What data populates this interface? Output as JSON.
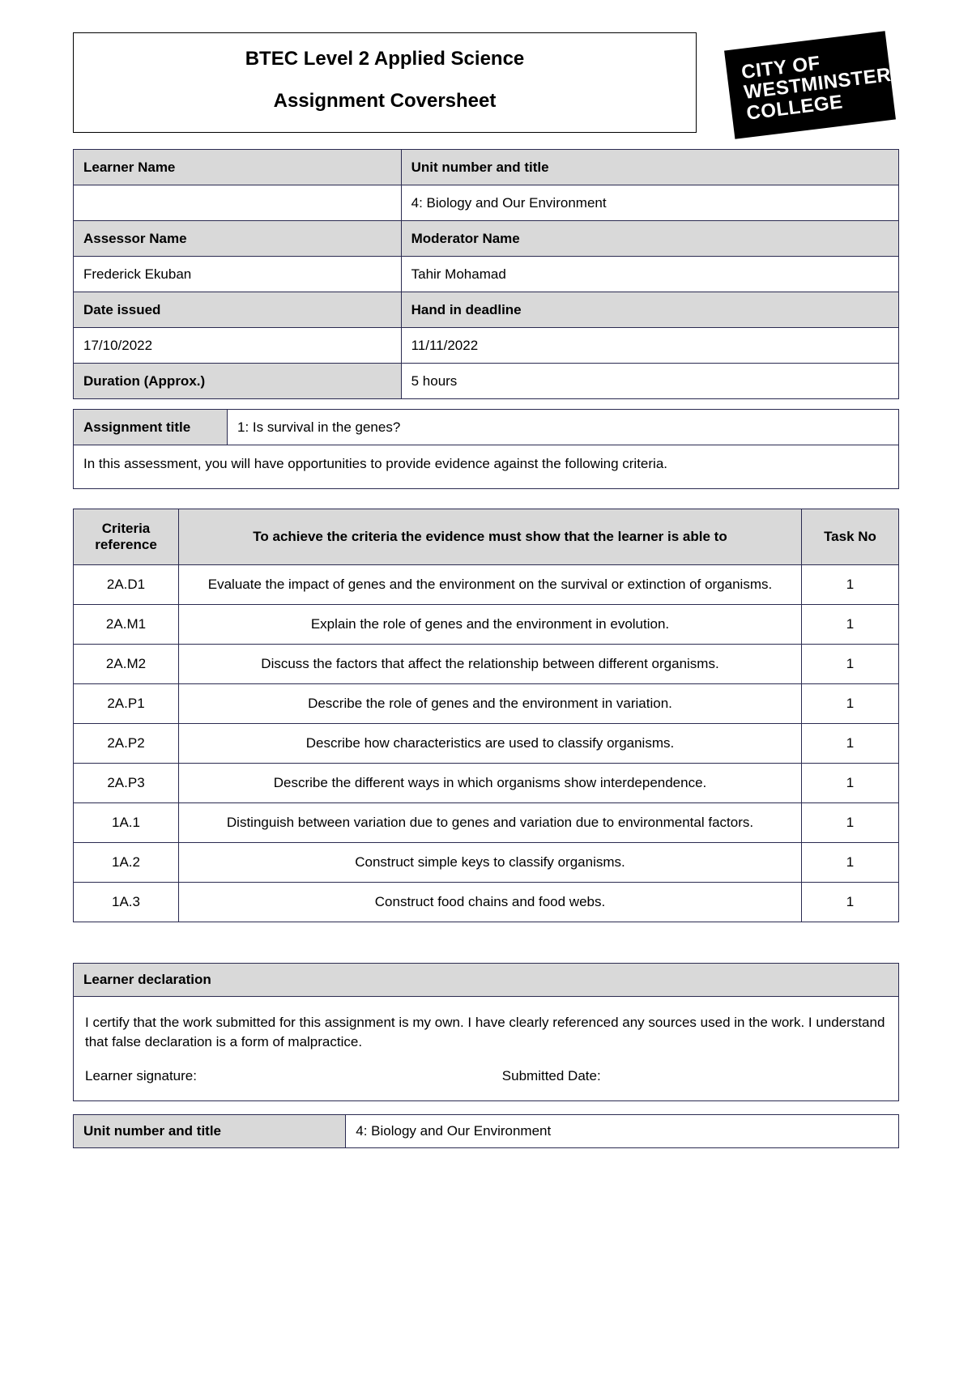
{
  "header": {
    "title_line1": "BTEC Level 2 Applied Science",
    "title_line2": "Assignment Coversheet",
    "logo_line1": "CITY OF",
    "logo_line2": "WESTMINSTER",
    "logo_line3": "COLLEGE"
  },
  "info": {
    "learner_name_label": "Learner Name",
    "learner_name_value": "",
    "unit_label": "Unit number and title",
    "unit_value": "4: Biology and Our Environment",
    "assessor_label": "Assessor Name",
    "assessor_value": "Frederick Ekuban",
    "moderator_label": "Moderator Name",
    "moderator_value": "Tahir Mohamad",
    "date_issued_label": "Date issued",
    "date_issued_value": "17/10/2022",
    "deadline_label": "Hand in deadline",
    "deadline_value": "11/11/2022",
    "duration_label": "Duration (Approx.)",
    "duration_value": "5 hours"
  },
  "assignment": {
    "title_label": "Assignment title",
    "title_value": "1: Is survival in the genes?",
    "note": "In this assessment, you will have opportunities to provide evidence against the following criteria."
  },
  "criteria": {
    "col_ref": "Criteria reference",
    "col_desc": "To achieve the criteria the evidence must show that the learner is able to",
    "col_task": "Task No",
    "rows": [
      {
        "ref": "2A.D1",
        "desc": "Evaluate the impact of genes and the environment on the survival or extinction of organisms.",
        "task": "1"
      },
      {
        "ref": "2A.M1",
        "desc": "Explain the role of genes and the environment in evolution.",
        "task": "1"
      },
      {
        "ref": "2A.M2",
        "desc": "Discuss the factors that affect the relationship between different organisms.",
        "task": "1"
      },
      {
        "ref": "2A.P1",
        "desc": "Describe the role of genes and the environment in variation.",
        "task": "1"
      },
      {
        "ref": "2A.P2",
        "desc": "Describe how characteristics are used to classify organisms.",
        "task": "1"
      },
      {
        "ref": "2A.P3",
        "desc": "Describe the different ways in which organisms show interdependence.",
        "task": "1"
      },
      {
        "ref": "1A.1",
        "desc": "Distinguish between variation due to genes and variation due to environmental factors.",
        "task": "1"
      },
      {
        "ref": "1A.2",
        "desc": "Construct simple keys to classify organisms.",
        "task": "1"
      },
      {
        "ref": "1A.3",
        "desc": "Construct food chains and food webs.",
        "task": "1"
      }
    ]
  },
  "declaration": {
    "header": "Learner declaration",
    "body": "I certify that the work submitted for this assignment is my own. I have clearly referenced any sources used in the work. I understand that false declaration is a form of malpractice.",
    "signature_label": "Learner signature:",
    "date_label": "Submitted Date:"
  },
  "footer": {
    "unit_label": "Unit number and title",
    "unit_value": "4: Biology and Our Environment"
  },
  "colors": {
    "header_bg": "#d9d9d9",
    "border": "#2a2a50",
    "text": "#000000",
    "logo_bg": "#000000",
    "logo_text": "#ffffff"
  }
}
